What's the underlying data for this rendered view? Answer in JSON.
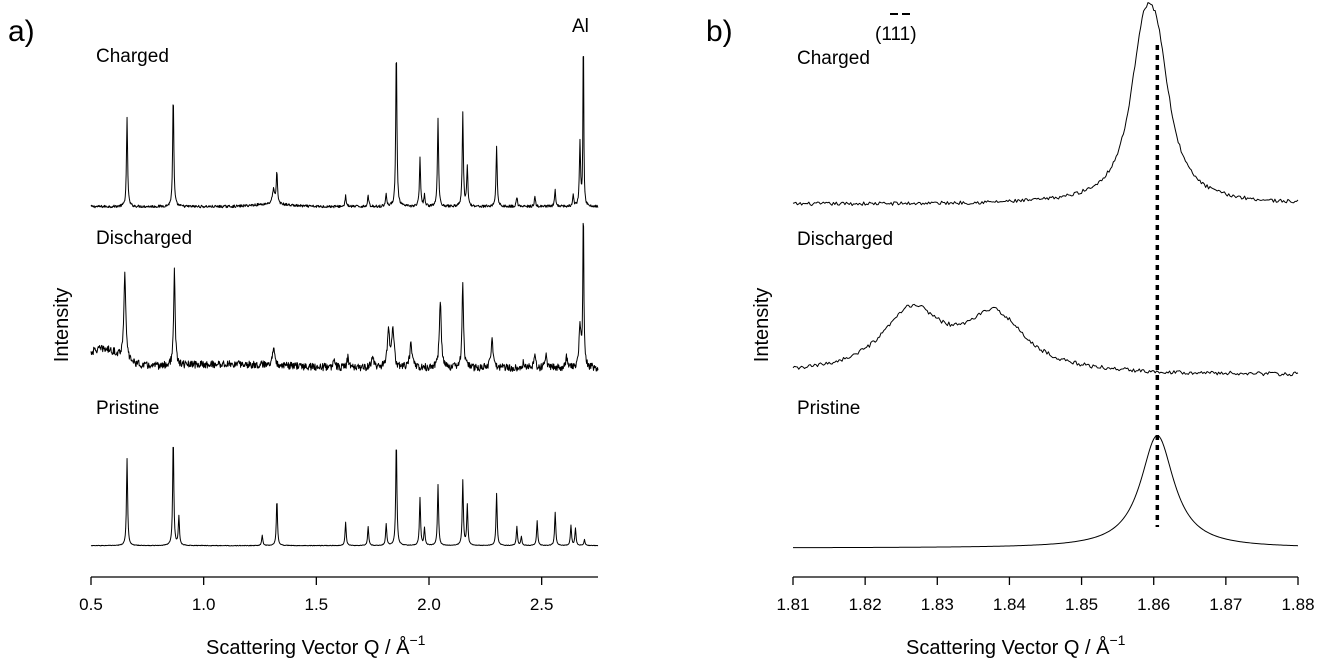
{
  "chart_data": [
    {
      "type": "line",
      "panel_label": "a)",
      "xlabel": "Scattering Vector Q / Å",
      "xlabel_sup": "−1",
      "ylabel": "Intensity",
      "xlim": [
        0.5,
        2.75
      ],
      "x_ticks": [
        "0.5",
        "1.0",
        "1.5",
        "2.0",
        "2.5"
      ],
      "x_tick_values": [
        0.5,
        1.0,
        1.5,
        2.0,
        2.5
      ],
      "annotation": "Al",
      "series": [
        {
          "name": "Charged",
          "baseline": 0.04,
          "noise": 0.008,
          "hump": [
            [
              1.3,
              0.015,
              0.08
            ]
          ],
          "peaks": [
            [
              0.66,
              0.55,
              0.003
            ],
            [
              0.865,
              0.7,
              0.003
            ],
            [
              1.31,
              0.09,
              0.006
            ],
            [
              1.325,
              0.2,
              0.003
            ],
            [
              1.63,
              0.07,
              0.003
            ],
            [
              1.73,
              0.07,
              0.003
            ],
            [
              1.81,
              0.08,
              0.003
            ],
            [
              1.855,
              1.0,
              0.003
            ],
            [
              1.96,
              0.3,
              0.003
            ],
            [
              1.98,
              0.07,
              0.003
            ],
            [
              2.04,
              0.55,
              0.003
            ],
            [
              2.15,
              0.58,
              0.003
            ],
            [
              2.17,
              0.25,
              0.003
            ],
            [
              2.3,
              0.38,
              0.003
            ],
            [
              2.39,
              0.06,
              0.003
            ],
            [
              2.47,
              0.06,
              0.003
            ],
            [
              2.56,
              0.1,
              0.003
            ],
            [
              2.64,
              0.07,
              0.003
            ],
            [
              2.67,
              0.4,
              0.003
            ],
            [
              2.685,
              1.15,
              0.002
            ]
          ]
        },
        {
          "name": "Discharged",
          "baseline": 0.12,
          "noise": 0.03,
          "hump": [
            [
              0.55,
              0.15,
              0.08
            ],
            [
              1.1,
              0.03,
              0.25
            ]
          ],
          "peaks": [
            [
              0.65,
              0.7,
              0.005
            ],
            [
              0.87,
              0.75,
              0.004
            ],
            [
              1.31,
              0.12,
              0.008
            ],
            [
              1.58,
              0.08,
              0.004
            ],
            [
              1.64,
              0.09,
              0.004
            ],
            [
              1.75,
              0.1,
              0.006
            ],
            [
              1.82,
              0.3,
              0.006
            ],
            [
              1.84,
              0.3,
              0.006
            ],
            [
              1.92,
              0.2,
              0.006
            ],
            [
              2.05,
              0.55,
              0.005
            ],
            [
              2.15,
              0.68,
              0.004
            ],
            [
              2.28,
              0.22,
              0.006
            ],
            [
              2.42,
              0.06,
              0.004
            ],
            [
              2.47,
              0.1,
              0.004
            ],
            [
              2.52,
              0.12,
              0.004
            ],
            [
              2.61,
              0.1,
              0.004
            ],
            [
              2.67,
              0.35,
              0.005
            ],
            [
              2.685,
              1.3,
              0.0025
            ]
          ]
        },
        {
          "name": "Pristine",
          "baseline": 0.03,
          "noise": 0.002,
          "hump": [],
          "peaks": [
            [
              0.66,
              0.6,
              0.003
            ],
            [
              0.865,
              0.75,
              0.003
            ],
            [
              0.89,
              0.2,
              0.003
            ],
            [
              1.26,
              0.07,
              0.003
            ],
            [
              1.325,
              0.32,
              0.003
            ],
            [
              1.63,
              0.16,
              0.003
            ],
            [
              1.73,
              0.13,
              0.003
            ],
            [
              1.81,
              0.15,
              0.003
            ],
            [
              1.855,
              0.73,
              0.003
            ],
            [
              1.96,
              0.33,
              0.003
            ],
            [
              1.98,
              0.12,
              0.003
            ],
            [
              2.04,
              0.42,
              0.003
            ],
            [
              2.15,
              0.45,
              0.003
            ],
            [
              2.17,
              0.28,
              0.003
            ],
            [
              2.3,
              0.36,
              0.003
            ],
            [
              2.39,
              0.13,
              0.003
            ],
            [
              2.41,
              0.06,
              0.003
            ],
            [
              2.48,
              0.17,
              0.003
            ],
            [
              2.56,
              0.23,
              0.003
            ],
            [
              2.63,
              0.14,
              0.003
            ],
            [
              2.65,
              0.12,
              0.003
            ],
            [
              2.69,
              0.04,
              0.003
            ]
          ]
        }
      ]
    },
    {
      "type": "line",
      "panel_label": "b)",
      "xlabel": "Scattering Vector Q / Å",
      "xlabel_sup": "−1",
      "ylabel": "Intensity",
      "xlim": [
        1.81,
        1.88
      ],
      "x_ticks": [
        "1.81",
        "1.82",
        "1.83",
        "1.84",
        "1.85",
        "1.86",
        "1.87",
        "1.88"
      ],
      "x_tick_values": [
        1.81,
        1.82,
        1.83,
        1.84,
        1.85,
        1.86,
        1.87,
        1.88
      ],
      "annotation": "(111)",
      "reference_line_x": 1.8605,
      "series": [
        {
          "name": "Charged",
          "baseline": 0.02,
          "noise": 0.008,
          "peaks": [
            [
              1.8585,
              0.55,
              0.0022
            ],
            [
              1.8605,
              0.5,
              0.0022
            ]
          ]
        },
        {
          "name": "Discharged",
          "baseline": 0.01,
          "noise": 0.012,
          "peaks": [
            [
              1.8265,
              0.36,
              0.005
            ],
            [
              1.838,
              0.33,
              0.005
            ]
          ]
        },
        {
          "name": "Pristine",
          "baseline": 0.0,
          "noise": 0.0,
          "peaks": [
            [
              1.8605,
              0.9,
              0.0028
            ]
          ]
        }
      ]
    }
  ]
}
